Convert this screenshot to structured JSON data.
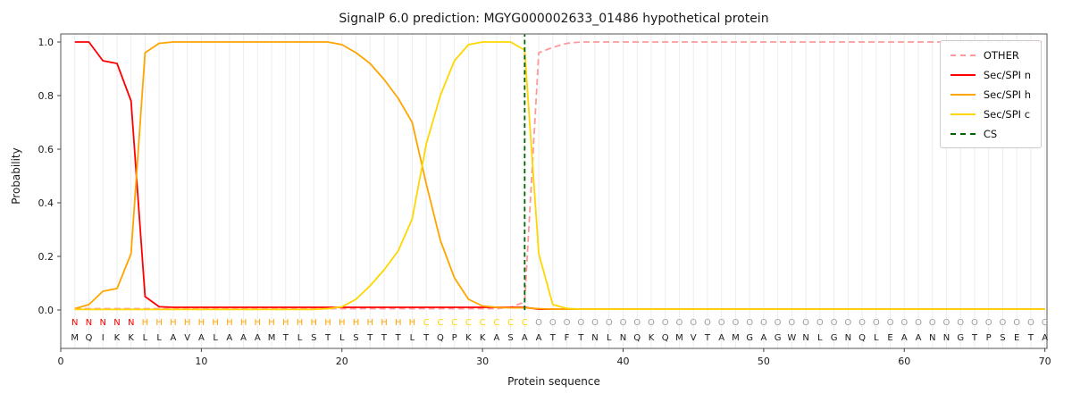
{
  "title": "SignalP 6.0 prediction: MGYG000002633_01486 hypothetical protein",
  "axes": {
    "xlabel": "Protein sequence",
    "ylabel": "Probability",
    "xticks": [
      0,
      10,
      20,
      30,
      40,
      50,
      60,
      70
    ],
    "yticks": [
      "0.0",
      "0.2",
      "0.4",
      "0.6",
      "0.8",
      "1.0"
    ]
  },
  "legend": {
    "items": [
      {
        "label": "OTHER",
        "color": "#ff9999",
        "dash": true
      },
      {
        "label": "Sec/SPI n",
        "color": "#ff0000",
        "dash": false
      },
      {
        "label": "Sec/SPI h",
        "color": "#ffa500",
        "dash": false
      },
      {
        "label": "Sec/SPI c",
        "color": "#ffd700",
        "dash": false
      },
      {
        "label": "CS",
        "color": "#006400",
        "dash": true
      }
    ]
  },
  "chart_data": {
    "type": "line",
    "title": "SignalP 6.0 prediction: MGYG000002633_01486 hypothetical protein",
    "xlabel": "Protein sequence",
    "ylabel": "Probability",
    "xlim": [
      0,
      70.5
    ],
    "ylim": [
      0,
      1.0
    ],
    "grid": "vertical-per-residue",
    "legend_position": "upper right",
    "sequence": "MQIKKLLAVALAAAMTLSTLSTTTLTQPKKASAATFTNLNQKQMVTAMGAGWNLGNQLEAANNGTPSETA",
    "residue_labels": "NNNNNHHHHHHHHHHHHHHHHHHHHCCCCCCCCOOOOOOOOOOOOOOOOOOOOOOOOOOOOOOOOOOOOO",
    "label_colors": {
      "N": "#ff0000",
      "H": "#ffa500",
      "C": "#ffd700",
      "O": "#9e9e9e"
    },
    "cs": {
      "name": "CS",
      "x": 33,
      "color": "#006400"
    },
    "series": [
      {
        "key": "other",
        "name": "OTHER",
        "color": "#ff9999",
        "dash": true,
        "values": [
          0.005,
          0.005,
          0.005,
          0.005,
          0.005,
          0.005,
          0.005,
          0.005,
          0.005,
          0.005,
          0.005,
          0.005,
          0.005,
          0.005,
          0.005,
          0.005,
          0.005,
          0.005,
          0.005,
          0.005,
          0.005,
          0.005,
          0.005,
          0.005,
          0.005,
          0.005,
          0.005,
          0.005,
          0.005,
          0.005,
          0.005,
          0.01,
          0.03,
          0.96,
          0.98,
          0.995,
          1,
          1,
          1,
          1,
          1,
          1,
          1,
          1,
          1,
          1,
          1,
          1,
          1,
          1,
          1,
          1,
          1,
          1,
          1,
          1,
          1,
          1,
          1,
          1,
          1,
          1,
          1,
          1,
          1,
          1,
          1,
          1,
          1,
          1
        ]
      },
      {
        "key": "n",
        "name": "Sec/SPI n",
        "color": "#ff0000",
        "dash": false,
        "values": [
          1,
          1,
          0.93,
          0.92,
          0.78,
          0.05,
          0.012,
          0.01,
          0.01,
          0.01,
          0.01,
          0.01,
          0.01,
          0.01,
          0.01,
          0.01,
          0.01,
          0.01,
          0.01,
          0.01,
          0.01,
          0.01,
          0.01,
          0.01,
          0.01,
          0.01,
          0.01,
          0.01,
          0.01,
          0.01,
          0.01,
          0.01,
          0.01,
          0.003,
          0.003,
          0.003,
          0.003,
          0.003,
          0.003,
          0.003,
          0.003,
          0.003,
          0.003,
          0.003,
          0.003,
          0.003,
          0.003,
          0.003,
          0.003,
          0.003,
          0.003,
          0.003,
          0.003,
          0.003,
          0.003,
          0.003,
          0.003,
          0.003,
          0.003,
          0.003,
          0.003,
          0.003,
          0.003,
          0.003,
          0.003,
          0.003,
          0.003,
          0.003,
          0.003,
          0.003
        ]
      },
      {
        "key": "h",
        "name": "Sec/SPI h",
        "color": "#ffa500",
        "dash": false,
        "values": [
          0.005,
          0.02,
          0.07,
          0.08,
          0.21,
          0.96,
          0.995,
          1,
          1,
          1,
          1,
          1,
          1,
          1,
          1,
          1,
          1,
          1,
          1,
          0.99,
          0.96,
          0.92,
          0.86,
          0.79,
          0.7,
          0.47,
          0.26,
          0.12,
          0.04,
          0.015,
          0.01,
          0.008,
          0.008,
          0.005,
          0.003,
          0.003,
          0.003,
          0.003,
          0.003,
          0.003,
          0.003,
          0.003,
          0.003,
          0.003,
          0.003,
          0.003,
          0.003,
          0.003,
          0.003,
          0.003,
          0.003,
          0.003,
          0.003,
          0.003,
          0.003,
          0.003,
          0.003,
          0.003,
          0.003,
          0.003,
          0.003,
          0.003,
          0.003,
          0.003,
          0.003,
          0.003,
          0.003,
          0.003,
          0.003,
          0.003
        ]
      },
      {
        "key": "c",
        "name": "Sec/SPI c",
        "color": "#ffd700",
        "dash": false,
        "values": [
          0.002,
          0.002,
          0.002,
          0.002,
          0.002,
          0.002,
          0.002,
          0.002,
          0.002,
          0.002,
          0.002,
          0.002,
          0.002,
          0.002,
          0.002,
          0.002,
          0.002,
          0.002,
          0.005,
          0.012,
          0.04,
          0.09,
          0.15,
          0.22,
          0.34,
          0.62,
          0.8,
          0.93,
          0.99,
          1,
          1,
          1,
          0.97,
          0.21,
          0.02,
          0.006,
          0.003,
          0.003,
          0.003,
          0.003,
          0.003,
          0.003,
          0.003,
          0.003,
          0.003,
          0.003,
          0.003,
          0.003,
          0.003,
          0.003,
          0.003,
          0.003,
          0.003,
          0.003,
          0.003,
          0.003,
          0.003,
          0.003,
          0.003,
          0.003,
          0.003,
          0.003,
          0.003,
          0.003,
          0.003,
          0.003,
          0.003,
          0.003,
          0.003,
          0.003
        ]
      }
    ]
  }
}
